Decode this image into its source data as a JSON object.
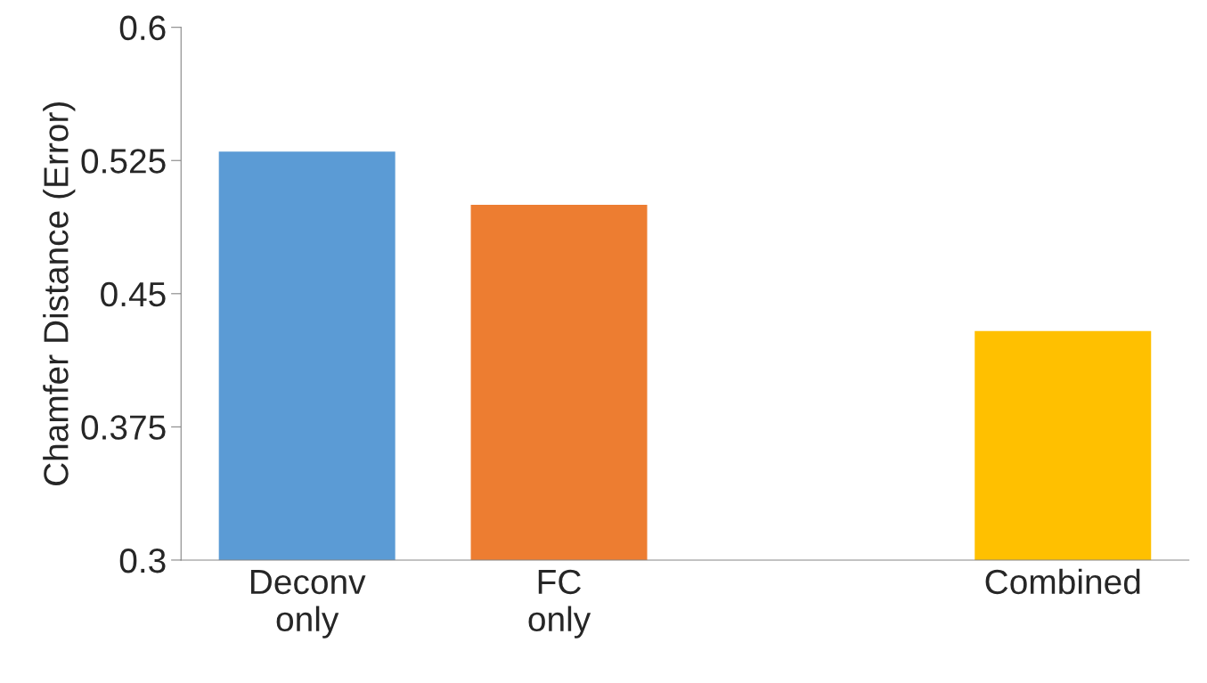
{
  "chart_data": {
    "type": "bar",
    "ylabel": "Chamfer Distance (Error)",
    "categories": [
      "Deconv\nonly",
      "FC\nonly",
      null,
      "Combined"
    ],
    "values": [
      0.53,
      0.5,
      null,
      0.429
    ],
    "colors": [
      "#5b9bd5",
      "#ed7d31",
      "#a5a5a5",
      "#ffc000"
    ],
    "ylim": [
      0.3,
      0.6
    ],
    "yticks": [
      0.3,
      0.375,
      0.45,
      0.525,
      0.6
    ],
    "grid": false,
    "legend": false
  }
}
